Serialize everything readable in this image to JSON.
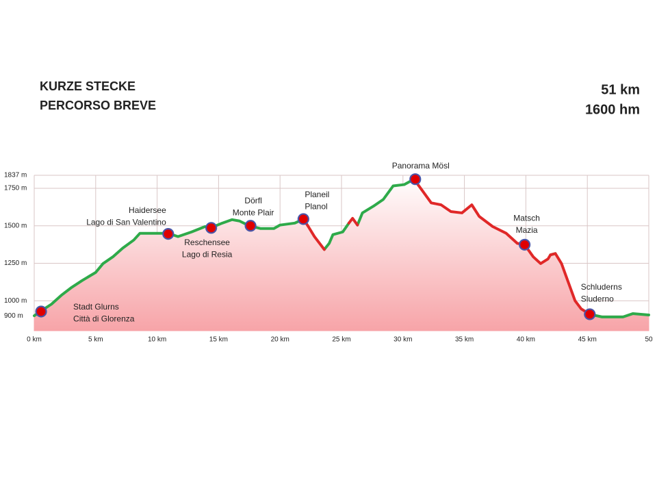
{
  "chart_data": {
    "type": "line",
    "title": [
      "KURZE STECKE",
      "PERCORSO BREVE"
    ],
    "stats": [
      "51 km",
      "1600 hm"
    ],
    "x": [
      0,
      0.56,
      1.4,
      2.2,
      3.06,
      3.9,
      5.0,
      5.6,
      6.4,
      7.2,
      8.1,
      8.6,
      9.2,
      10.9,
      11.7,
      12.8,
      13.9,
      14.5,
      15.3,
      16.1,
      16.7,
      17.5,
      18.4,
      19.5,
      20.0,
      21.2,
      21.9,
      22.3,
      22.8,
      23.6,
      24.0,
      24.3,
      25.1,
      25.6,
      25.9,
      26.3,
      26.7,
      27.6,
      28.4,
      29.2,
      30.1,
      30.9,
      31.7,
      32.3,
      33.1,
      33.9,
      34.8,
      35.6,
      36.2,
      37.3,
      38.4,
      39.3,
      39.9,
      40.6,
      41.2,
      41.8,
      42.0,
      42.4,
      42.9,
      43.4,
      44.0,
      44.5,
      45.2,
      46.2,
      47.9,
      48.7,
      50
    ],
    "series": [
      {
        "color": "#2eaa4a",
        "values": [
          900,
          932,
          977,
          1036,
          1090,
          1135,
          1189,
          1248,
          1293,
          1351,
          1405,
          1450,
          1450,
          1450,
          1428,
          1459,
          1495,
          1491,
          1518,
          1541,
          1532,
          1500,
          1482,
          1482,
          1505,
          1518,
          1545,
          null,
          null,
          1342,
          1383,
          1441,
          1459,
          1518,
          null,
          1505,
          1586,
          1631,
          1676,
          1766,
          1775,
          1811,
          null,
          null,
          null,
          null,
          null,
          null,
          null,
          null,
          null,
          null,
          null,
          null,
          null,
          null,
          1306,
          1315,
          null,
          null,
          null,
          null,
          910,
          892,
          892,
          914,
          905
        ]
      },
      {
        "color": "#e02828",
        "values": [
          null,
          null,
          null,
          null,
          null,
          null,
          null,
          null,
          null,
          null,
          null,
          null,
          null,
          null,
          null,
          null,
          null,
          null,
          null,
          null,
          null,
          null,
          null,
          null,
          null,
          null,
          1545,
          1495,
          1428,
          1342,
          null,
          null,
          null,
          1518,
          1550,
          1505,
          null,
          null,
          null,
          null,
          null,
          1811,
          1721,
          1653,
          1640,
          1595,
          1586,
          1640,
          1563,
          1495,
          1450,
          1383,
          1374,
          1293,
          1248,
          1279,
          1306,
          1315,
          1248,
          1135,
          1000,
          946,
          910,
          null,
          null,
          null,
          null
        ]
      }
    ],
    "waypoints": [
      {
        "label": [
          "Stadt Glurns",
          "Città di Glorenza"
        ],
        "x": 0.56,
        "y": 928
      },
      {
        "label": [
          "Haidersee",
          "Lago di San Valentino"
        ],
        "x": 10.9,
        "y": 1446
      },
      {
        "label": [
          "Reschensee",
          "Lago di Resia"
        ],
        "x": 14.4,
        "y": 1486
      },
      {
        "label": [
          "Dörfl",
          "Monte Plair"
        ],
        "x": 17.6,
        "y": 1500
      },
      {
        "label": [
          "Planeil",
          "Planol"
        ],
        "x": 21.9,
        "y": 1545
      },
      {
        "label": [
          "Panorama Mösl"
        ],
        "x": 31.0,
        "y": 1811
      },
      {
        "label": [
          "Matsch",
          "Mazia"
        ],
        "x": 39.9,
        "y": 1374
      },
      {
        "label": [
          "Schluderns",
          "Sluderno"
        ],
        "x": 45.2,
        "y": 910
      }
    ],
    "marker_color": "#e00000",
    "xlim": [
      0,
      50
    ],
    "xticks": [
      {
        "value": 0,
        "label": "0 km"
      },
      {
        "value": 5,
        "label": "5 km"
      },
      {
        "value": 10,
        "label": "10 km"
      },
      {
        "value": 15,
        "label": "15 km"
      },
      {
        "value": 20,
        "label": "20 km"
      },
      {
        "value": 25,
        "label": "25 km"
      },
      {
        "value": 30,
        "label": "30 km"
      },
      {
        "value": 35,
        "label": "35 km"
      },
      {
        "value": 40,
        "label": "40 km"
      },
      {
        "value": 45,
        "label": "45 km"
      },
      50
    ],
    "ylim": [
      800,
      1837
    ],
    "yticks": [
      {
        "value": 900,
        "label": "900 m"
      },
      {
        "value": 1000,
        "label": "1000 m"
      },
      {
        "value": 1250,
        "label": "1250 m"
      },
      {
        "value": 1500,
        "label": "1500 m"
      },
      {
        "value": 1750,
        "label": "1750 m"
      },
      {
        "value": 1837,
        "label": "1837 m"
      }
    ],
    "grid": true
  }
}
